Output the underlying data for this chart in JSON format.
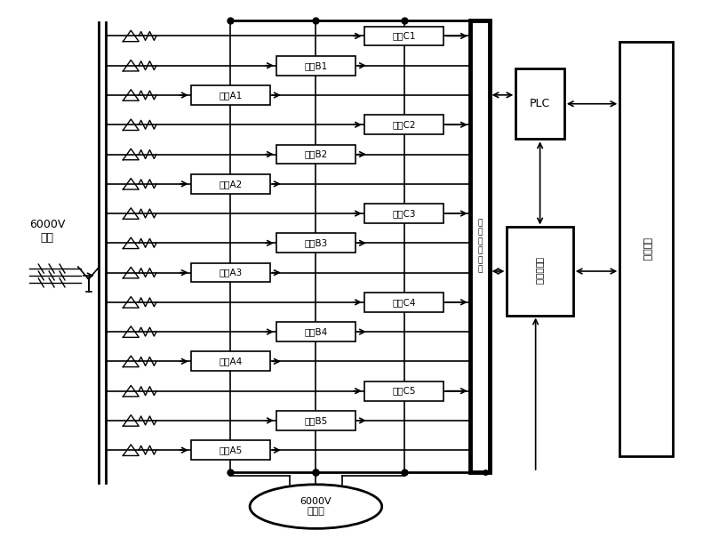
{
  "bg_color": "#ffffff",
  "fig_width": 8.0,
  "fig_height": 6.14,
  "dpi": 100,
  "units_A": [
    "单元A1",
    "单元A2",
    "单元A3",
    "单元A4",
    "单元A5"
  ],
  "units_B": [
    "单元B1",
    "单元B2",
    "单元B3",
    "单元B4",
    "单元B5"
  ],
  "units_C": [
    "单元C1",
    "单元C2",
    "单元C3",
    "单元C4",
    "单元C5"
  ],
  "input_label": "6000V\n输入",
  "motor_label": "6000V\n电动机",
  "plc_label": "PLC",
  "computer_label": "工业计算机",
  "user_label": "用户接口",
  "bus_label": "光\n纤\n数\n据\n总\n线"
}
